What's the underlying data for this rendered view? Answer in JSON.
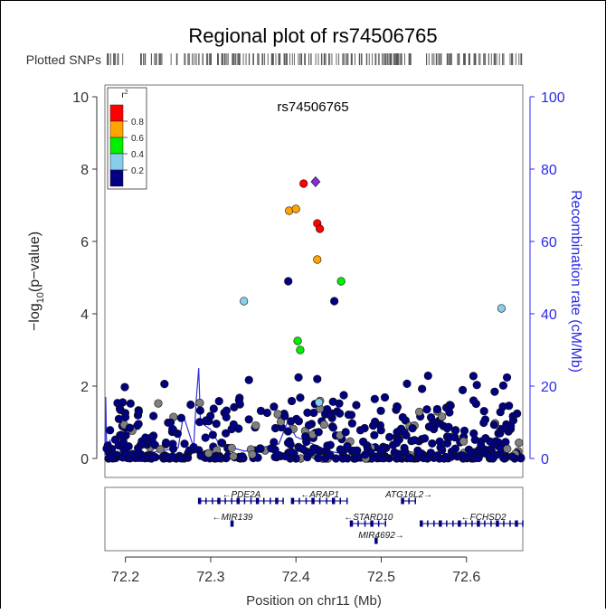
{
  "chart_data": {
    "type": "scatter",
    "title": "Regional plot of rs74506765",
    "plotted_snps_label": "Plotted SNPs",
    "lead_snp": {
      "name": "rs74506765",
      "x": 72.423,
      "y": 7.65
    },
    "xlabel": "Position on chr11 (Mb)",
    "ylabel_left": "-log10(p-value)",
    "ylabel_left_base": "−log",
    "ylabel_left_sub": "10",
    "ylabel_left_rest": "(p−value)",
    "ylabel_right": "Recombination rate (cM/Mb)",
    "xlim": [
      72.176,
      72.666
    ],
    "ylim_left": [
      0,
      10
    ],
    "ylim_right": [
      0,
      100
    ],
    "xticks": [
      "72.2",
      "72.3",
      "72.4",
      "72.5",
      "72.6"
    ],
    "yticks_left": [
      "0",
      "2",
      "4",
      "6",
      "8",
      "10"
    ],
    "yticks_right": [
      "0",
      "20",
      "40",
      "60",
      "80",
      "100"
    ],
    "legend": {
      "title_base": "r",
      "title_sup": "2",
      "labels": [
        "0.8",
        "0.6",
        "0.4",
        "0.2"
      ],
      "colors": [
        "#ff0000",
        "#ffa500",
        "#00ee00",
        "#87ceeb",
        "#000080"
      ]
    },
    "highlighted_points": [
      {
        "x": 72.409,
        "y": 7.6,
        "r2_color": "#ff0000"
      },
      {
        "x": 72.425,
        "y": 6.5,
        "r2_color": "#ff0000"
      },
      {
        "x": 72.428,
        "y": 6.35,
        "r2_color": "#ff0000"
      },
      {
        "x": 72.392,
        "y": 6.85,
        "r2_color": "#ffa500"
      },
      {
        "x": 72.4,
        "y": 6.9,
        "r2_color": "#ffa500"
      },
      {
        "x": 72.425,
        "y": 5.5,
        "r2_color": "#ffa500"
      },
      {
        "x": 72.453,
        "y": 4.9,
        "r2_color": "#00ee00"
      },
      {
        "x": 72.402,
        "y": 3.25,
        "r2_color": "#00ee00"
      },
      {
        "x": 72.405,
        "y": 3.0,
        "r2_color": "#00ee00"
      },
      {
        "x": 72.339,
        "y": 4.35,
        "r2_color": "#87ceeb"
      },
      {
        "x": 72.641,
        "y": 4.15,
        "r2_color": "#87ceeb"
      },
      {
        "x": 72.427,
        "y": 1.55,
        "r2_color": "#87ceeb"
      },
      {
        "x": 72.391,
        "y": 4.9,
        "r2_color": "#000080"
      },
      {
        "x": 72.445,
        "y": 4.35,
        "r2_color": "#000080"
      }
    ],
    "recombination_rate": [
      [
        72.176,
        1
      ],
      [
        72.177,
        17
      ],
      [
        72.178,
        3
      ],
      [
        72.182,
        5
      ],
      [
        72.186,
        1
      ],
      [
        72.2,
        2
      ],
      [
        72.215,
        1
      ],
      [
        72.24,
        2
      ],
      [
        72.262,
        3
      ],
      [
        72.268,
        12
      ],
      [
        72.28,
        3
      ],
      [
        72.283,
        16
      ],
      [
        72.286,
        25
      ],
      [
        72.288,
        10
      ],
      [
        72.3,
        8
      ],
      [
        72.31,
        4
      ],
      [
        72.325,
        3
      ],
      [
        72.34,
        2
      ],
      [
        72.36,
        3
      ],
      [
        72.38,
        4
      ],
      [
        72.39,
        10
      ],
      [
        72.4,
        6
      ],
      [
        72.42,
        4
      ],
      [
        72.44,
        2
      ],
      [
        72.46,
        1
      ],
      [
        72.5,
        1
      ],
      [
        72.55,
        0.5
      ],
      [
        72.6,
        0.5
      ],
      [
        72.64,
        0.8
      ],
      [
        72.666,
        0.5
      ]
    ],
    "genes": [
      {
        "name": "PDE2A",
        "start": 72.287,
        "end": 72.385,
        "dir": "left",
        "row": 0
      },
      {
        "name": "ARAP1",
        "start": 72.396,
        "end": 72.46,
        "dir": "left",
        "row": 0
      },
      {
        "name": "ATG16L2",
        "start": 72.525,
        "end": 72.54,
        "dir": "right",
        "row": 0
      },
      {
        "name": "MIR139",
        "start": 72.325,
        "end": 72.326,
        "dir": "left",
        "row": 1
      },
      {
        "name": "STARD10",
        "start": 72.465,
        "end": 72.505,
        "dir": "left",
        "row": 1
      },
      {
        "name": "FCHSD2",
        "start": 72.547,
        "end": 72.666,
        "dir": "left",
        "row": 1
      },
      {
        "name": "MIR4692",
        "start": 72.494,
        "end": 72.495,
        "dir": "right",
        "row": 2
      }
    ]
  }
}
